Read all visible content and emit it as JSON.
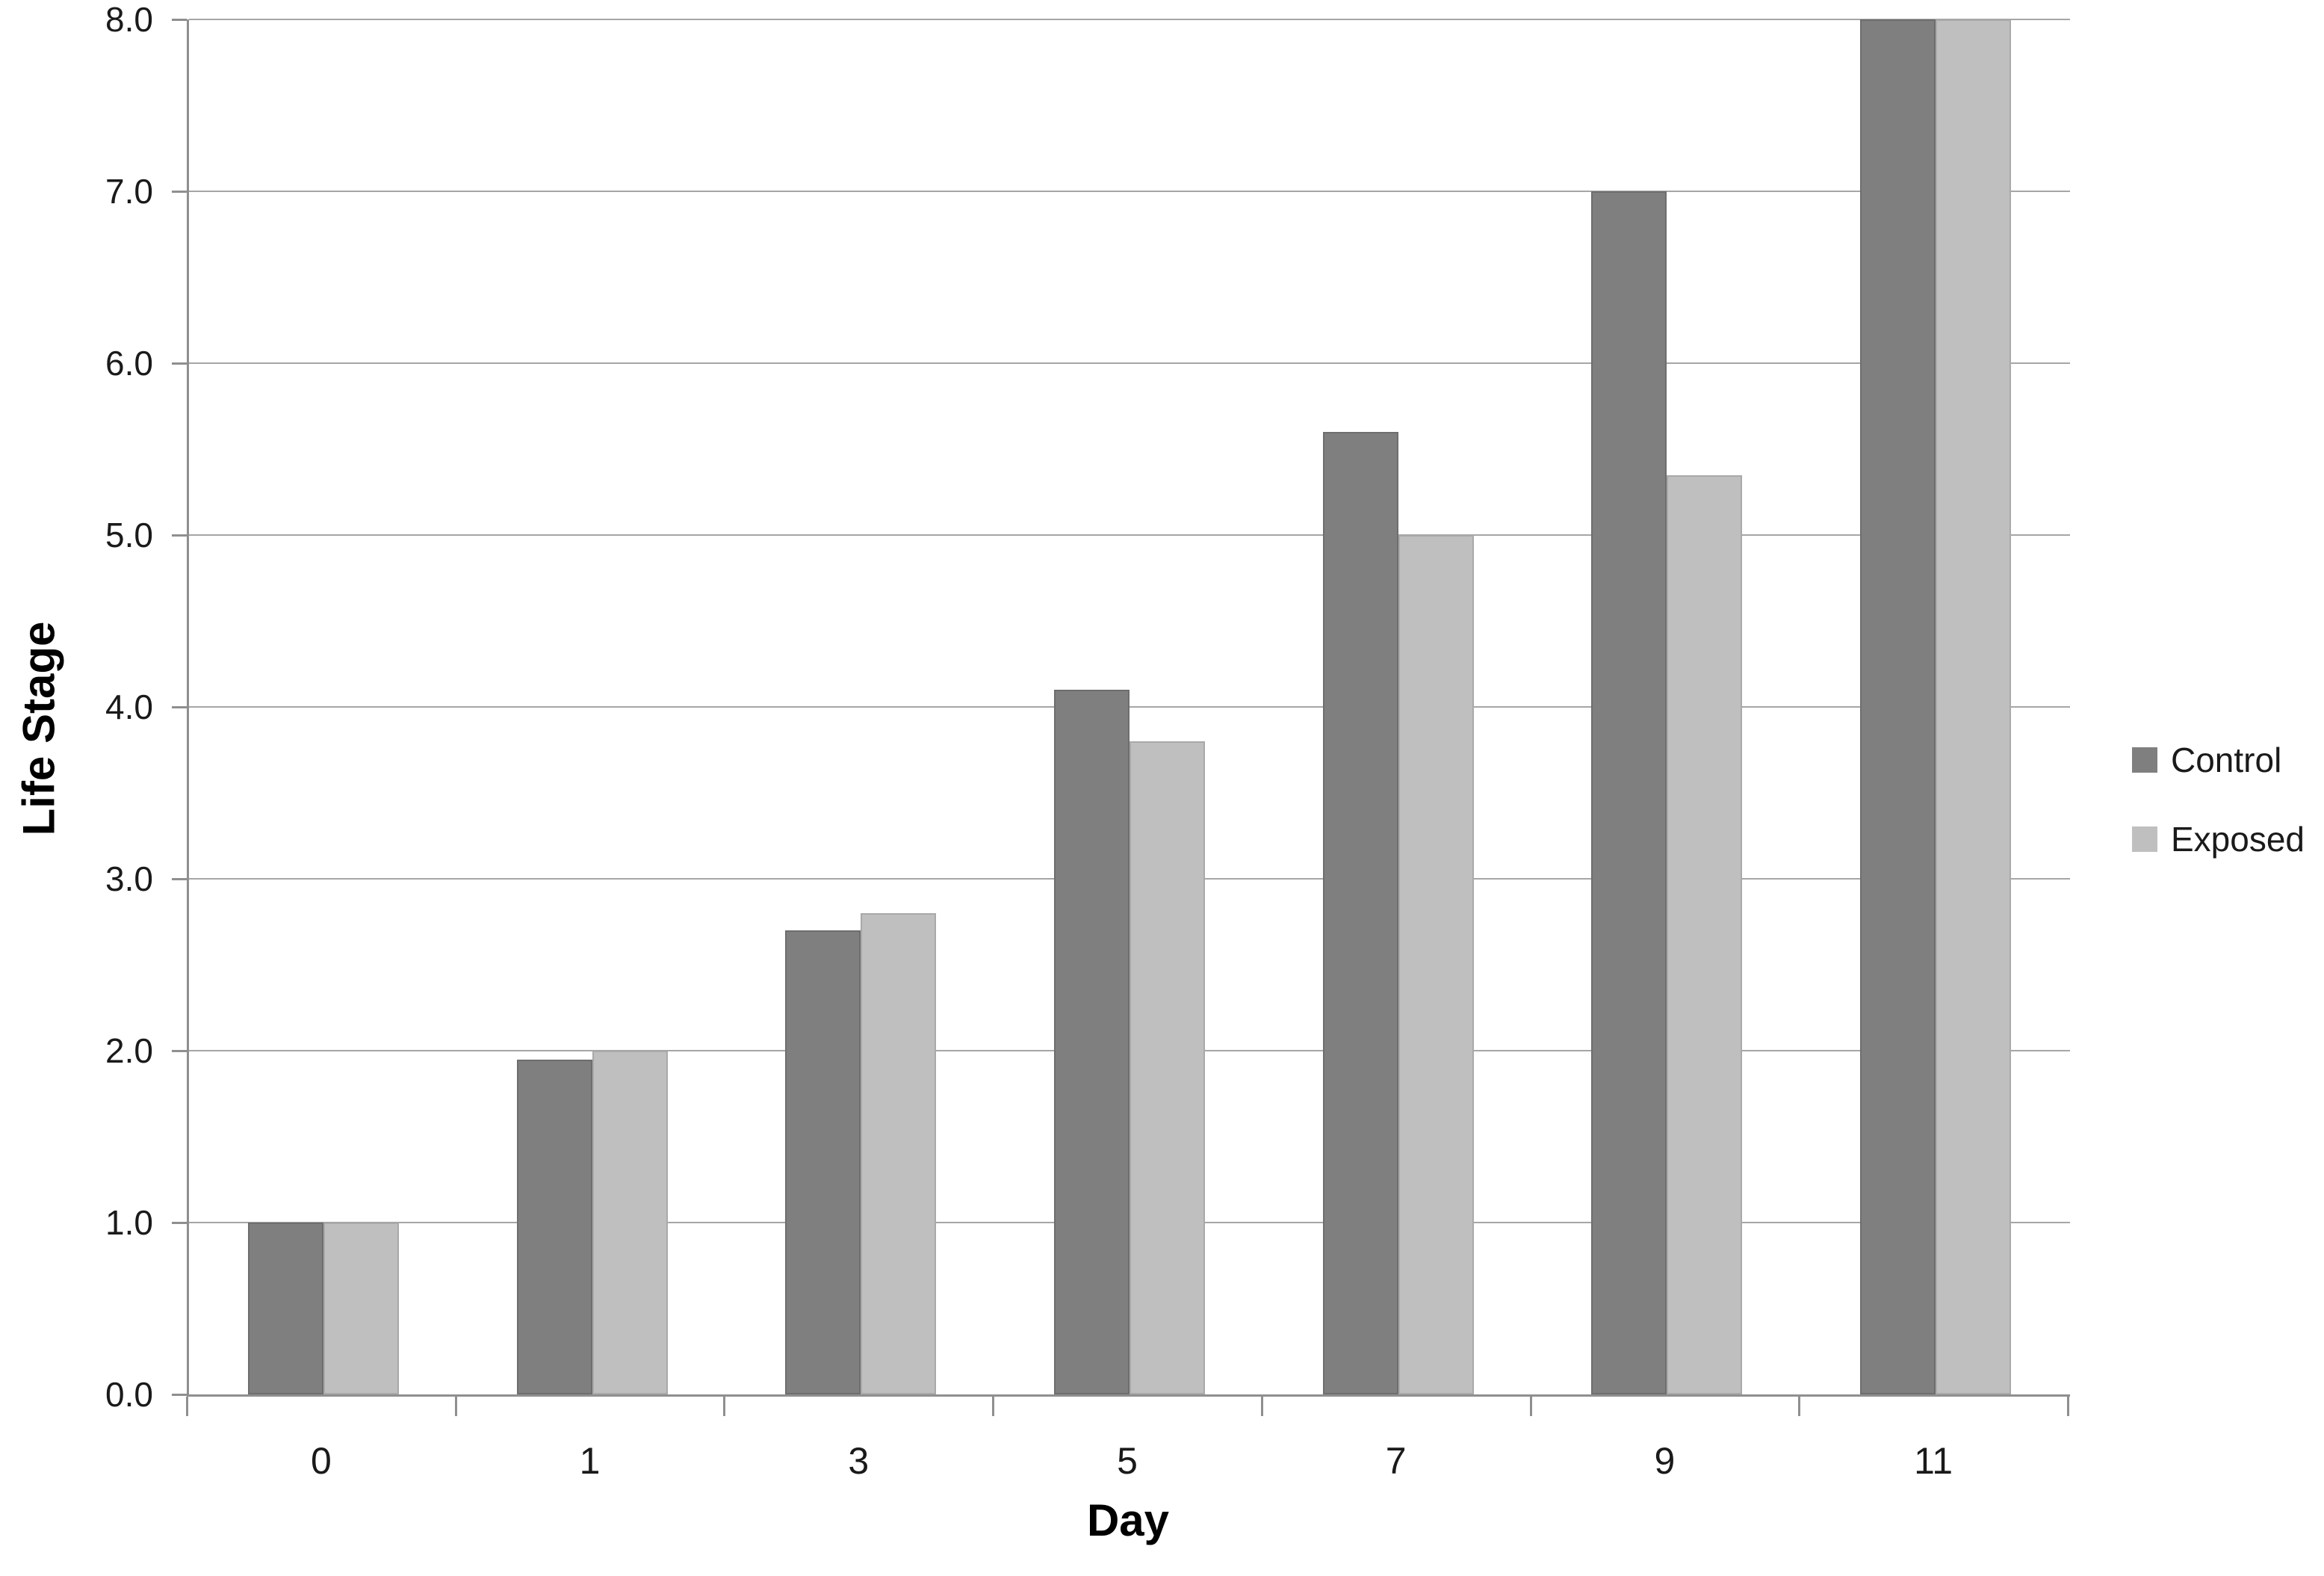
{
  "chart_data": {
    "type": "bar",
    "title": "",
    "xlabel": "Day",
    "ylabel": "Life Stage",
    "categories": [
      "0",
      "1",
      "3",
      "5",
      "7",
      "9",
      "11"
    ],
    "series": [
      {
        "name": "Control",
        "color": "#7f7f7f",
        "border_color": "#6e6e6e",
        "values": [
          1.0,
          1.95,
          2.7,
          4.1,
          5.6,
          7.0,
          8.0
        ]
      },
      {
        "name": "Exposed",
        "color": "#bfbfbf",
        "border_color": "#a9a9a9",
        "values": [
          1.0,
          2.0,
          2.8,
          3.8,
          5.0,
          5.35,
          8.0
        ]
      }
    ],
    "ylim": [
      0,
      8
    ],
    "ytick_step": 1.0,
    "ytick_labels": [
      "0.0",
      "1.0",
      "2.0",
      "3.0",
      "4.0",
      "5.0",
      "6.0",
      "7.0",
      "8.0"
    ],
    "grid": "horizontal",
    "legend_position": "right"
  },
  "colors": {
    "background": "#ffffff",
    "gridline": "#a6a6a6",
    "axis": "#8f8f8f",
    "text": "#1a1a1a"
  }
}
